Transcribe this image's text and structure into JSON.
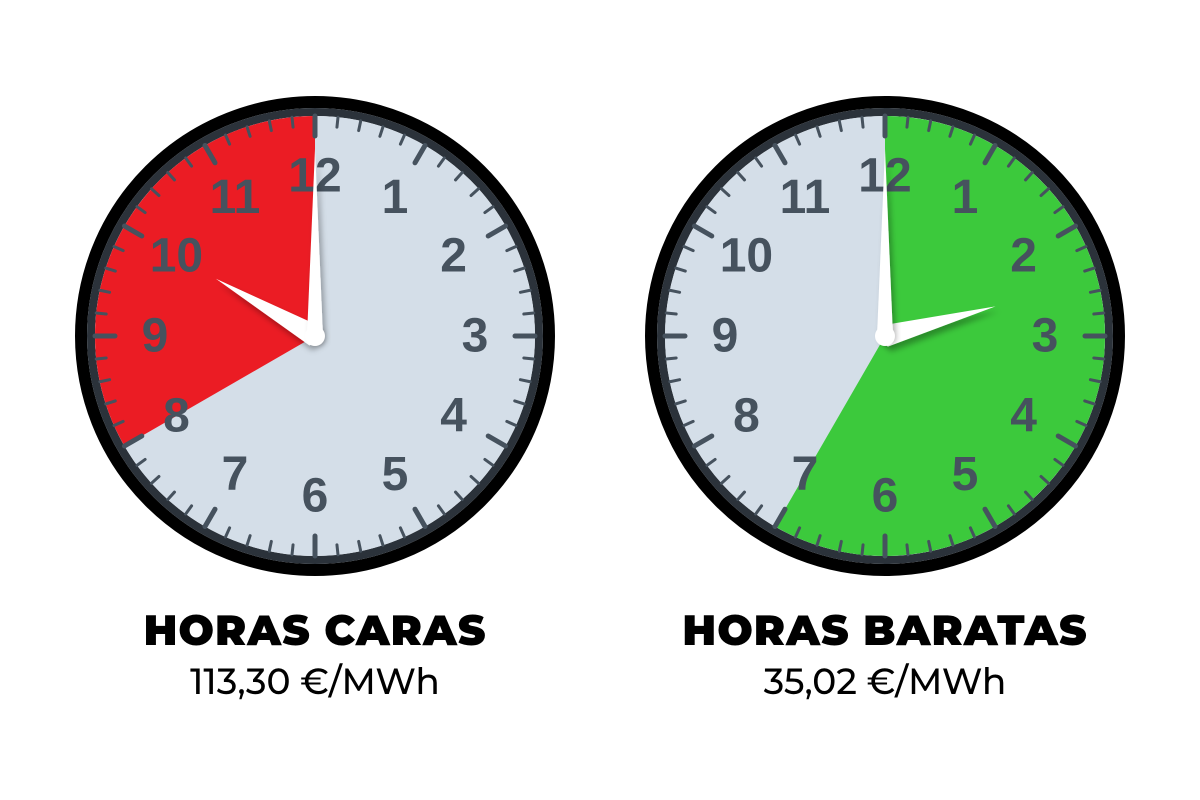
{
  "background_color": "#ffffff",
  "clock": {
    "diameter": 480,
    "bezel_outer_color": "#000000",
    "bezel_inner_color": "#2b323a",
    "bezel_outer_width": 12,
    "bezel_inner_width": 8,
    "face_color": "#d4dee8",
    "numeral_color": "#46525e",
    "numeral_font_size": 48,
    "numeral_font_weight": 700,
    "tick_color": "#46525e",
    "minute_tick_length": 10,
    "minute_tick_width": 3,
    "hour_tick_length": 20,
    "hour_tick_width": 5,
    "hand_color": "#ffffff",
    "hand_shadow": "rgba(0,0,0,0.25)",
    "hub_radius": 10
  },
  "clocks": [
    {
      "id": "caras",
      "sector_color": "#eb1c24",
      "sector_start_hour": 8,
      "sector_end_hour": 12,
      "hour_hand_at": 10,
      "minute_hand_at": 0,
      "title": "HORAS CARAS",
      "price": "113,30 €/MWh"
    },
    {
      "id": "baratas",
      "sector_color": "#3cc93c",
      "sector_start_hour": 12,
      "sector_end_hour": 19,
      "hour_hand_at": 2.5,
      "minute_hand_at": 0,
      "title": "HORAS BARATAS",
      "price": "35,02 €/MWh"
    }
  ],
  "caption_style": {
    "title_font_size": 42,
    "title_font_weight": 900,
    "title_color": "#000000",
    "price_font_size": 36,
    "price_font_weight": 500,
    "price_color": "#000000"
  }
}
